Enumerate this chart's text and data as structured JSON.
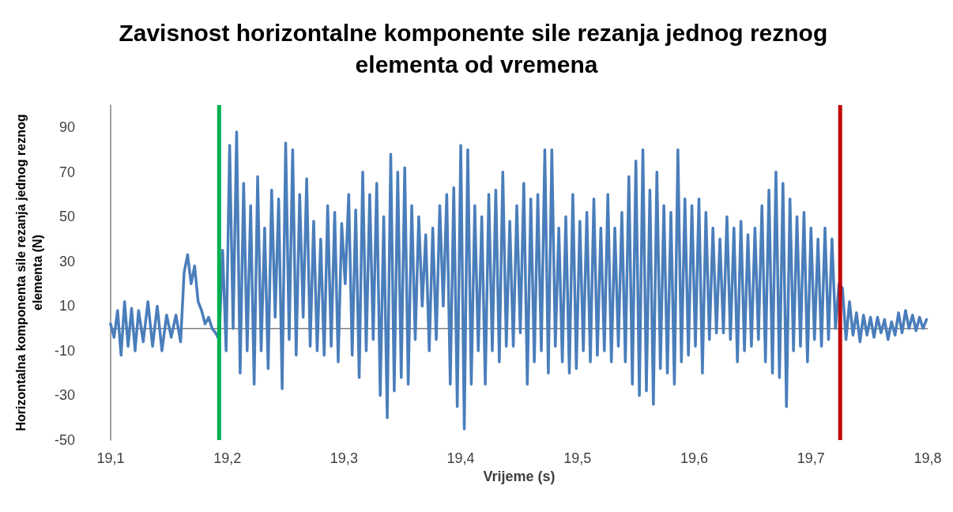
{
  "chart_data": {
    "type": "line",
    "title": "Zavisnost horizontalne komponente sile rezanja jednog reznog elementa od vremena",
    "xlabel": "Vrijeme (s)",
    "ylabel": "Horizontalna komponenta sile rezanja jednog reznog elementa (N)",
    "xlim": [
      19.1,
      19.8
    ],
    "xticks": [
      {
        "value": 19.1,
        "label": "19,1"
      },
      {
        "value": 19.2,
        "label": "19,2"
      },
      {
        "value": 19.3,
        "label": "19,3"
      },
      {
        "value": 19.4,
        "label": "19,4"
      },
      {
        "value": 19.5,
        "label": "19,5"
      },
      {
        "value": 19.6,
        "label": "19,6"
      },
      {
        "value": 19.7,
        "label": "19,7"
      },
      {
        "value": 19.8,
        "label": "19,8"
      }
    ],
    "ylim": [
      -50,
      100
    ],
    "yticks": [
      -50,
      -30,
      -10,
      10,
      30,
      50,
      70,
      90
    ],
    "grid": false,
    "marker": "none",
    "line_style": "solid",
    "ref_lines": [
      {
        "axis": "y",
        "value": 0,
        "color": "#808080"
      },
      {
        "axis": "x",
        "value": 19.193,
        "color": "#00b050"
      },
      {
        "axis": "x",
        "value": 19.725,
        "color": "#c00000"
      }
    ],
    "series": [
      {
        "color": "#4a7ebb",
        "x": [
          19.1,
          19.103,
          19.106,
          19.109,
          19.112,
          19.115,
          19.118,
          19.121,
          19.124,
          19.128,
          19.132,
          19.136,
          19.14,
          19.144,
          19.148,
          19.152,
          19.156,
          19.16,
          19.163,
          19.166,
          19.169,
          19.172,
          19.175,
          19.178,
          19.181,
          19.184,
          19.187,
          19.19,
          19.193,
          19.196,
          19.199,
          19.202,
          19.205,
          19.208,
          19.211,
          19.214,
          19.217,
          19.22,
          19.223,
          19.226,
          19.229,
          19.232,
          19.235,
          19.238,
          19.241,
          19.244,
          19.247,
          19.25,
          19.253,
          19.256,
          19.259,
          19.262,
          19.265,
          19.268,
          19.271,
          19.274,
          19.277,
          19.28,
          19.283,
          19.286,
          19.289,
          19.292,
          19.295,
          19.298,
          19.301,
          19.304,
          19.307,
          19.31,
          19.313,
          19.316,
          19.319,
          19.322,
          19.325,
          19.328,
          19.331,
          19.334,
          19.337,
          19.34,
          19.343,
          19.346,
          19.349,
          19.352,
          19.355,
          19.358,
          19.361,
          19.364,
          19.367,
          19.37,
          19.373,
          19.376,
          19.379,
          19.382,
          19.385,
          19.388,
          19.391,
          19.394,
          19.397,
          19.4,
          19.403,
          19.406,
          19.409,
          19.412,
          19.415,
          19.418,
          19.421,
          19.424,
          19.427,
          19.43,
          19.433,
          19.436,
          19.439,
          19.442,
          19.445,
          19.448,
          19.451,
          19.454,
          19.457,
          19.46,
          19.463,
          19.466,
          19.469,
          19.472,
          19.475,
          19.478,
          19.481,
          19.484,
          19.487,
          19.49,
          19.493,
          19.496,
          19.499,
          19.502,
          19.505,
          19.508,
          19.511,
          19.514,
          19.517,
          19.52,
          19.523,
          19.526,
          19.529,
          19.532,
          19.535,
          19.538,
          19.541,
          19.544,
          19.547,
          19.55,
          19.553,
          19.556,
          19.559,
          19.562,
          19.565,
          19.568,
          19.571,
          19.574,
          19.577,
          19.58,
          19.583,
          19.586,
          19.589,
          19.592,
          19.595,
          19.598,
          19.601,
          19.604,
          19.607,
          19.61,
          19.613,
          19.616,
          19.619,
          19.622,
          19.625,
          19.628,
          19.631,
          19.634,
          19.637,
          19.64,
          19.643,
          19.646,
          19.649,
          19.652,
          19.655,
          19.658,
          19.661,
          19.664,
          19.667,
          19.67,
          19.673,
          19.676,
          19.679,
          19.682,
          19.685,
          19.688,
          19.691,
          19.694,
          19.697,
          19.7,
          19.703,
          19.706,
          19.709,
          19.712,
          19.715,
          19.718,
          19.721,
          19.724,
          19.727,
          19.73,
          19.733,
          19.736,
          19.739,
          19.742,
          19.745,
          19.748,
          19.751,
          19.754,
          19.757,
          19.76,
          19.763,
          19.766,
          19.769,
          19.772,
          19.775,
          19.778,
          19.781,
          19.784,
          19.787,
          19.79,
          19.793,
          19.796,
          19.799
        ],
        "values": [
          2,
          -4,
          8,
          -12,
          12,
          -8,
          9,
          -10,
          8,
          -6,
          12,
          -8,
          10,
          -10,
          6,
          -4,
          6,
          -6,
          25,
          33,
          20,
          28,
          12,
          8,
          2,
          5,
          0,
          -2,
          -5,
          35,
          -10,
          82,
          0,
          88,
          -20,
          65,
          -10,
          55,
          -25,
          68,
          -10,
          45,
          -18,
          62,
          5,
          58,
          -27,
          83,
          -5,
          80,
          -12,
          60,
          5,
          67,
          -8,
          48,
          -10,
          40,
          -12,
          55,
          -8,
          52,
          -15,
          47,
          20,
          60,
          -12,
          53,
          -22,
          70,
          -10,
          60,
          -5,
          65,
          -30,
          50,
          -40,
          78,
          -28,
          70,
          -22,
          72,
          -25,
          55,
          -5,
          50,
          10,
          42,
          -10,
          45,
          -5,
          55,
          10,
          60,
          -25,
          63,
          -35,
          82,
          -45,
          80,
          -25,
          55,
          -10,
          50,
          -25,
          60,
          -10,
          62,
          -15,
          70,
          -8,
          48,
          -8,
          55,
          -2,
          65,
          -25,
          58,
          -15,
          60,
          -10,
          80,
          -20,
          80,
          -8,
          45,
          -15,
          50,
          -20,
          60,
          -18,
          48,
          -10,
          52,
          -15,
          58,
          -12,
          45,
          -10,
          60,
          -15,
          45,
          -8,
          52,
          -15,
          68,
          -25,
          75,
          -30,
          80,
          -28,
          62,
          -34,
          70,
          -18,
          55,
          -20,
          52,
          -25,
          80,
          -15,
          58,
          -12,
          55,
          -8,
          58,
          -20,
          52,
          -5,
          45,
          -2,
          40,
          -2,
          50,
          -5,
          45,
          -15,
          48,
          -10,
          42,
          -8,
          45,
          -5,
          55,
          -15,
          62,
          -20,
          70,
          -22,
          65,
          -35,
          58,
          -10,
          50,
          -8,
          52,
          -15,
          45,
          -5,
          40,
          -8,
          45,
          -5,
          40,
          0,
          20,
          18,
          -5,
          12,
          -3,
          7,
          -6,
          6,
          -3,
          5,
          -4,
          5,
          -2,
          4,
          -5,
          3,
          -3,
          7,
          -2,
          8,
          0,
          6,
          -1,
          5,
          0,
          4
        ]
      }
    ]
  }
}
